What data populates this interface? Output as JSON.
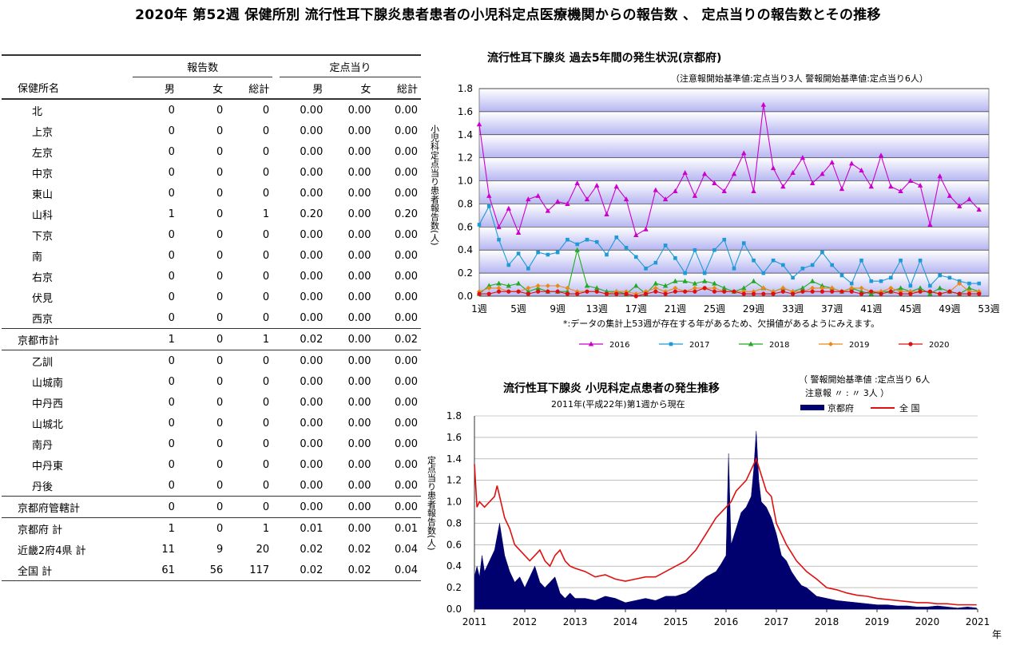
{
  "page_title": "2020年 第52週 保健所別 流行性耳下腺炎患者患者の小児科定点医療機関からの報告数 、 定点当りの報告数とその推移",
  "table": {
    "group_headers": [
      "報告数",
      "定点当り"
    ],
    "col_headers": [
      "保健所名",
      "男",
      "女",
      "総計",
      "男",
      "女",
      "総計"
    ],
    "rows": [
      {
        "name": "北",
        "cells": [
          "0",
          "0",
          "0",
          "0.00",
          "0.00",
          "0.00"
        ],
        "style": "name"
      },
      {
        "name": "上京",
        "cells": [
          "0",
          "0",
          "0",
          "0.00",
          "0.00",
          "0.00"
        ],
        "style": "name"
      },
      {
        "name": "左京",
        "cells": [
          "0",
          "0",
          "0",
          "0.00",
          "0.00",
          "0.00"
        ],
        "style": "name"
      },
      {
        "name": "中京",
        "cells": [
          "0",
          "0",
          "0",
          "0.00",
          "0.00",
          "0.00"
        ],
        "style": "name"
      },
      {
        "name": "東山",
        "cells": [
          "0",
          "0",
          "0",
          "0.00",
          "0.00",
          "0.00"
        ],
        "style": "name"
      },
      {
        "name": "山科",
        "cells": [
          "1",
          "0",
          "1",
          "0.20",
          "0.00",
          "0.20"
        ],
        "style": "name"
      },
      {
        "name": "下京",
        "cells": [
          "0",
          "0",
          "0",
          "0.00",
          "0.00",
          "0.00"
        ],
        "style": "name"
      },
      {
        "name": "南",
        "cells": [
          "0",
          "0",
          "0",
          "0.00",
          "0.00",
          "0.00"
        ],
        "style": "name"
      },
      {
        "name": "右京",
        "cells": [
          "0",
          "0",
          "0",
          "0.00",
          "0.00",
          "0.00"
        ],
        "style": "name"
      },
      {
        "name": "伏見",
        "cells": [
          "0",
          "0",
          "0",
          "0.00",
          "0.00",
          "0.00"
        ],
        "style": "name"
      },
      {
        "name": "西京",
        "cells": [
          "0",
          "0",
          "0",
          "0.00",
          "0.00",
          "0.00"
        ],
        "style": "name"
      },
      {
        "name": "京都市計",
        "cells": [
          "1",
          "0",
          "1",
          "0.02",
          "0.00",
          "0.02"
        ],
        "style": "sub"
      },
      {
        "name": "乙訓",
        "cells": [
          "0",
          "0",
          "0",
          "0.00",
          "0.00",
          "0.00"
        ],
        "style": "name"
      },
      {
        "name": "山城南",
        "cells": [
          "0",
          "0",
          "0",
          "0.00",
          "0.00",
          "0.00"
        ],
        "style": "name"
      },
      {
        "name": "中丹西",
        "cells": [
          "0",
          "0",
          "0",
          "0.00",
          "0.00",
          "0.00"
        ],
        "style": "name"
      },
      {
        "name": "山城北",
        "cells": [
          "0",
          "0",
          "0",
          "0.00",
          "0.00",
          "0.00"
        ],
        "style": "name"
      },
      {
        "name": "南丹",
        "cells": [
          "0",
          "0",
          "0",
          "0.00",
          "0.00",
          "0.00"
        ],
        "style": "name"
      },
      {
        "name": "中丹東",
        "cells": [
          "0",
          "0",
          "0",
          "0.00",
          "0.00",
          "0.00"
        ],
        "style": "name"
      },
      {
        "name": "丹後",
        "cells": [
          "0",
          "0",
          "0",
          "0.00",
          "0.00",
          "0.00"
        ],
        "style": "name"
      },
      {
        "name": "京都府管轄計",
        "cells": [
          "0",
          "0",
          "0",
          "0.00",
          "0.00",
          "0.00"
        ],
        "style": "sub"
      },
      {
        "name": "京都府  計",
        "cells": [
          "1",
          "0",
          "1",
          "0.01",
          "0.00",
          "0.01"
        ],
        "style": "total"
      },
      {
        "name": "近畿2府4県  計",
        "cells": [
          "11",
          "9",
          "20",
          "0.02",
          "0.02",
          "0.04"
        ],
        "style": "total"
      },
      {
        "name": "全国  計",
        "cells": [
          "61",
          "56",
          "117",
          "0.02",
          "0.02",
          "0.04"
        ],
        "style": "total"
      }
    ]
  },
  "chart_data": [
    {
      "type": "line",
      "title": "流行性耳下腺炎 過去5年間の発生状況(京都府)",
      "subtitle": "（注意報開始基準値:定点当り3人  警報開始基準値:定点当り6人）",
      "ylabel": "小児科定点当り患者報告数(人)",
      "ylim": [
        0,
        1.8
      ],
      "y_ticks": [
        "0.0",
        "0.2",
        "0.4",
        "0.6",
        "0.8",
        "1.0",
        "1.2",
        "1.4",
        "1.6",
        "1.8"
      ],
      "x_ticks": [
        "1週",
        "5週",
        "9週",
        "13週",
        "17週",
        "21週",
        "25週",
        "29週",
        "33週",
        "37週",
        "41週",
        "45週",
        "49週",
        "53週"
      ],
      "note": "*:データの集計上53週が存在する年があるため、欠損値があるようにみえます。",
      "legend_position": "bottom",
      "series": [
        {
          "name": "2016",
          "color": "#cc00cc",
          "marker": "triangle",
          "values": [
            1.49,
            0.87,
            0.6,
            0.76,
            0.55,
            0.84,
            0.87,
            0.74,
            0.82,
            0.8,
            0.98,
            0.84,
            0.96,
            0.71,
            0.95,
            0.84,
            0.53,
            0.58,
            0.92,
            0.84,
            0.91,
            1.07,
            0.87,
            1.06,
            0.98,
            0.91,
            1.06,
            1.24,
            0.91,
            1.66,
            1.11,
            0.95,
            1.07,
            1.2,
            0.98,
            1.06,
            1.16,
            0.93,
            1.15,
            1.09,
            0.95,
            1.22,
            0.95,
            0.91,
            1.0,
            0.96,
            0.62,
            1.04,
            0.87,
            0.78,
            0.84,
            0.75
          ]
        },
        {
          "name": "2017",
          "color": "#1e9ad6",
          "marker": "square",
          "values": [
            0.62,
            0.78,
            0.49,
            0.27,
            0.37,
            0.24,
            0.38,
            0.36,
            0.38,
            0.49,
            0.45,
            0.49,
            0.47,
            0.36,
            0.51,
            0.42,
            0.34,
            0.24,
            0.29,
            0.44,
            0.33,
            0.2,
            0.4,
            0.2,
            0.4,
            0.49,
            0.24,
            0.46,
            0.31,
            0.2,
            0.31,
            0.27,
            0.16,
            0.24,
            0.27,
            0.38,
            0.27,
            0.18,
            0.11,
            0.31,
            0.13,
            0.13,
            0.16,
            0.31,
            0.09,
            0.31,
            0.09,
            0.18,
            0.16,
            0.13,
            0.11,
            0.11
          ]
        },
        {
          "name": "2018",
          "color": "#22aa22",
          "marker": "triangle",
          "values": [
            0.02,
            0.09,
            0.11,
            0.09,
            0.11,
            0.04,
            0.07,
            0.04,
            0.04,
            0.04,
            0.4,
            0.09,
            0.07,
            0.04,
            0.04,
            0.02,
            0.09,
            0.02,
            0.11,
            0.09,
            0.13,
            0.13,
            0.11,
            0.13,
            0.11,
            0.07,
            0.04,
            0.07,
            0.13,
            0.07,
            0.04,
            0.07,
            0.04,
            0.07,
            0.13,
            0.09,
            0.07,
            0.04,
            0.07,
            0.04,
            0.02,
            0.04,
            0.04,
            0.07,
            0.04,
            0.07,
            0.02,
            0.07,
            0.04,
            0.02,
            0.07,
            0.04
          ]
        },
        {
          "name": "2019",
          "color": "#e88a1a",
          "marker": "diamond",
          "values": [
            0.04,
            0.07,
            0.07,
            0.04,
            0.04,
            0.07,
            0.09,
            0.09,
            0.09,
            0.07,
            0.04,
            0.04,
            0.04,
            0.02,
            0.04,
            0.04,
            0.02,
            0.04,
            0.07,
            0.04,
            0.07,
            0.04,
            0.07,
            0.07,
            0.07,
            0.04,
            0.04,
            0.04,
            0.04,
            0.07,
            0.04,
            0.07,
            0.04,
            0.04,
            0.07,
            0.07,
            0.07,
            0.04,
            0.07,
            0.07,
            0.04,
            0.04,
            0.07,
            0.04,
            0.04,
            0.04,
            0.04,
            0.02,
            0.04,
            0.11,
            0.04,
            0.04
          ]
        },
        {
          "name": "2020",
          "color": "#e01010",
          "marker": "circle",
          "values": [
            0.02,
            0.02,
            0.04,
            0.04,
            0.04,
            0.02,
            0.04,
            0.04,
            0.04,
            0.02,
            0.02,
            0.04,
            0.04,
            0.02,
            0.02,
            0.02,
            0.0,
            0.02,
            0.04,
            0.02,
            0.04,
            0.04,
            0.04,
            0.07,
            0.04,
            0.04,
            0.04,
            0.02,
            0.02,
            0.02,
            0.02,
            0.04,
            0.02,
            0.04,
            0.04,
            0.04,
            0.04,
            0.04,
            0.04,
            0.02,
            0.04,
            0.02,
            0.04,
            0.02,
            0.02,
            0.04,
            0.04,
            0.02,
            0.04,
            0.02,
            0.02,
            0.02
          ]
        }
      ]
    },
    {
      "type": "area",
      "title": "流行性耳下腺炎  小児科定点患者の発生推移",
      "subtitle": "2011年(平成22年)第1週から現在",
      "threshold_note_1": "（  警報開始基準値 :定点当り 6人",
      "threshold_note_2": "注意報     〃         :    〃       3人  ）",
      "ylabel": "定点当り患者報告数(人)",
      "xlabel": "年",
      "ylim": [
        0,
        1.8
      ],
      "y_ticks": [
        "0.0",
        "0.2",
        "0.4",
        "0.6",
        "0.8",
        "1.0",
        "1.2",
        "1.4",
        "1.6",
        "1.8"
      ],
      "x_ticks": [
        "2011",
        "2012",
        "2013",
        "2014",
        "2015",
        "2016",
        "2017",
        "2018",
        "2019",
        "2020",
        "2021"
      ],
      "legend_position": "top",
      "series": [
        {
          "name": "京都府",
          "color": "#00006e",
          "style": "area",
          "x": [
            2011.0,
            2011.05,
            2011.1,
            2011.15,
            2011.2,
            2011.3,
            2011.4,
            2011.5,
            2011.55,
            2011.6,
            2011.7,
            2011.8,
            2011.9,
            2012.0,
            2012.1,
            2012.2,
            2012.3,
            2012.4,
            2012.5,
            2012.6,
            2012.7,
            2012.8,
            2012.9,
            2013.0,
            2013.2,
            2013.4,
            2013.6,
            2013.8,
            2014.0,
            2014.2,
            2014.4,
            2014.6,
            2014.8,
            2015.0,
            2015.2,
            2015.4,
            2015.6,
            2015.8,
            2015.9,
            2016.0,
            2016.05,
            2016.1,
            2016.2,
            2016.3,
            2016.4,
            2016.5,
            2016.55,
            2016.6,
            2016.65,
            2016.7,
            2016.8,
            2016.9,
            2017.0,
            2017.1,
            2017.2,
            2017.3,
            2017.4,
            2017.5,
            2017.6,
            2017.8,
            2018.0,
            2018.2,
            2018.4,
            2018.6,
            2018.8,
            2019.0,
            2019.2,
            2019.4,
            2019.6,
            2019.8,
            2020.0,
            2020.2,
            2020.4,
            2020.6,
            2020.8,
            2020.98
          ],
          "values": [
            0.3,
            0.4,
            0.3,
            0.5,
            0.35,
            0.45,
            0.55,
            0.8,
            0.65,
            0.5,
            0.35,
            0.25,
            0.3,
            0.2,
            0.3,
            0.4,
            0.25,
            0.2,
            0.25,
            0.3,
            0.15,
            0.1,
            0.15,
            0.1,
            0.1,
            0.08,
            0.12,
            0.1,
            0.06,
            0.08,
            0.1,
            0.08,
            0.12,
            0.12,
            0.15,
            0.22,
            0.3,
            0.35,
            0.42,
            0.5,
            1.45,
            0.6,
            0.75,
            0.9,
            0.95,
            1.05,
            1.3,
            1.66,
            1.2,
            1.0,
            0.95,
            0.85,
            0.7,
            0.5,
            0.45,
            0.35,
            0.28,
            0.22,
            0.2,
            0.12,
            0.1,
            0.08,
            0.07,
            0.06,
            0.05,
            0.04,
            0.04,
            0.03,
            0.03,
            0.02,
            0.02,
            0.03,
            0.02,
            0.01,
            0.02,
            0.01
          ]
        },
        {
          "name": "全  国",
          "color": "#e01010",
          "style": "line",
          "x": [
            2011.0,
            2011.05,
            2011.1,
            2011.2,
            2011.3,
            2011.4,
            2011.45,
            2011.5,
            2011.6,
            2011.7,
            2011.8,
            2011.9,
            2012.0,
            2012.1,
            2012.2,
            2012.3,
            2012.4,
            2012.5,
            2012.6,
            2012.7,
            2012.8,
            2012.9,
            2013.0,
            2013.2,
            2013.4,
            2013.6,
            2013.8,
            2014.0,
            2014.2,
            2014.4,
            2014.6,
            2014.8,
            2015.0,
            2015.2,
            2015.4,
            2015.6,
            2015.8,
            2016.0,
            2016.1,
            2016.2,
            2016.3,
            2016.4,
            2016.5,
            2016.6,
            2016.7,
            2016.8,
            2016.9,
            2017.0,
            2017.2,
            2017.4,
            2017.6,
            2017.8,
            2018.0,
            2018.2,
            2018.4,
            2018.6,
            2018.8,
            2019.0,
            2019.2,
            2019.4,
            2019.6,
            2019.8,
            2020.0,
            2020.2,
            2020.4,
            2020.6,
            2020.8,
            2020.98
          ],
          "values": [
            1.35,
            0.95,
            1.0,
            0.95,
            1.0,
            1.05,
            1.15,
            1.05,
            0.85,
            0.75,
            0.6,
            0.55,
            0.5,
            0.45,
            0.5,
            0.55,
            0.45,
            0.4,
            0.5,
            0.55,
            0.45,
            0.4,
            0.38,
            0.35,
            0.3,
            0.32,
            0.28,
            0.26,
            0.28,
            0.3,
            0.3,
            0.35,
            0.4,
            0.45,
            0.55,
            0.7,
            0.85,
            0.95,
            1.0,
            1.1,
            1.15,
            1.2,
            1.3,
            1.4,
            1.25,
            1.1,
            1.05,
            0.8,
            0.6,
            0.45,
            0.35,
            0.28,
            0.2,
            0.18,
            0.15,
            0.13,
            0.12,
            0.1,
            0.09,
            0.08,
            0.07,
            0.06,
            0.06,
            0.05,
            0.05,
            0.04,
            0.04,
            0.04
          ]
        }
      ]
    }
  ]
}
